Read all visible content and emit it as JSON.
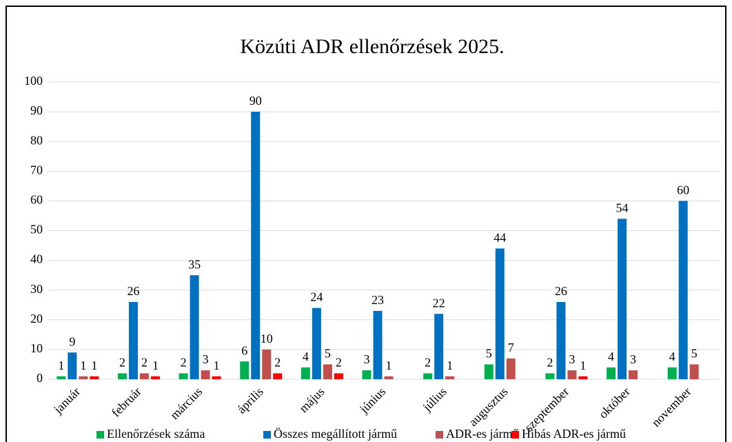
{
  "chart_data": {
    "type": "bar",
    "title": "Közúti ADR ellenőrzések 2025.",
    "categories": [
      "január",
      "február",
      "március",
      "április",
      "május",
      "június",
      "július",
      "augusztus",
      "szeptember",
      "október",
      "november"
    ],
    "series": [
      {
        "name": "Ellenőrzések száma",
        "color": "#00b050",
        "values": [
          1,
          2,
          2,
          6,
          4,
          3,
          2,
          5,
          2,
          4,
          4
        ]
      },
      {
        "name": "Összes megállított jármű",
        "color": "#0070c0",
        "values": [
          9,
          26,
          35,
          90,
          24,
          23,
          22,
          44,
          26,
          54,
          60
        ]
      },
      {
        "name": "ADR-es jármű",
        "color": "#c0504d",
        "values": [
          1,
          2,
          3,
          10,
          5,
          1,
          1,
          7,
          3,
          3,
          5
        ]
      },
      {
        "name": "Hibás ADR-es jármű",
        "color": "#ff0000",
        "values": [
          1,
          1,
          1,
          2,
          2,
          null,
          null,
          null,
          1,
          null,
          null
        ]
      }
    ],
    "ylim": [
      0,
      100
    ],
    "yticks": [
      0,
      10,
      20,
      30,
      40,
      50,
      60,
      70,
      80,
      90,
      100
    ],
    "grid": true,
    "legend": "bottom"
  }
}
